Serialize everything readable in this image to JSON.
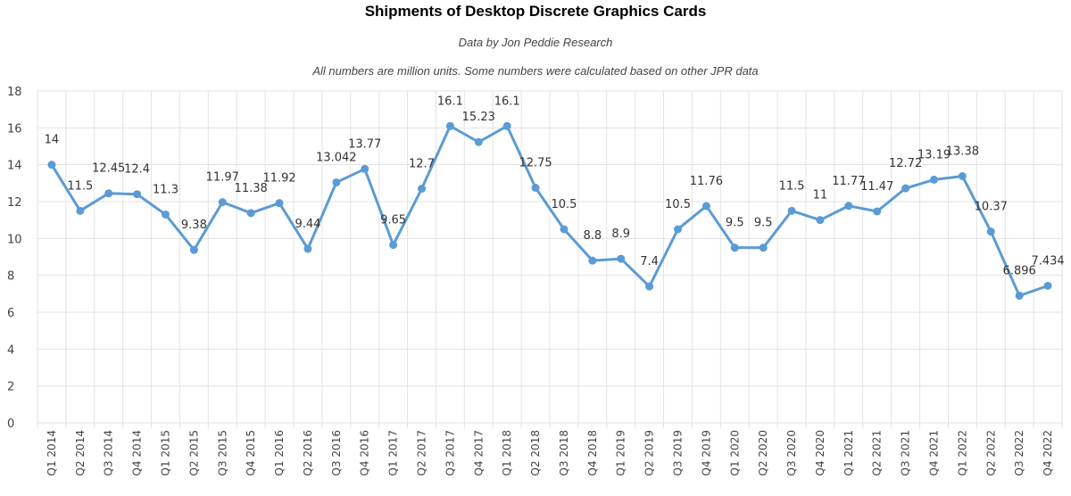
{
  "chart_data": {
    "type": "line",
    "title": "Shipments of Desktop Discrete Graphics Cards",
    "subtitle": "Data by Jon Peddie Research",
    "note": "All numbers are million units. Some numbers were calculated based on other JPR data",
    "xlabel": "",
    "ylabel": "",
    "ylim": [
      0,
      18
    ],
    "yticks": [
      0,
      2,
      4,
      6,
      8,
      10,
      12,
      14,
      16,
      18
    ],
    "grid": true,
    "color": "#5b9bd5",
    "categories": [
      "Q1 2014",
      "Q2 2014",
      "Q3 2014",
      "Q4 2014",
      "Q1 2015",
      "Q2 2015",
      "Q3 2015",
      "Q4 2015",
      "Q1 2016",
      "Q2 2016",
      "Q3 2016",
      "Q4 2016",
      "Q1 2017",
      "Q2 2017",
      "Q3 2017",
      "Q4 2017",
      "Q1 2018",
      "Q2 2018",
      "Q3 2018",
      "Q4 2018",
      "Q1 2019",
      "Q2 2019",
      "Q3 2019",
      "Q4 2019",
      "Q1 2020",
      "Q2 2020",
      "Q3 2020",
      "Q4 2020",
      "Q1 2021",
      "Q2 2021",
      "Q3 2021",
      "Q4 2021",
      "Q1 2022",
      "Q2 2022",
      "Q3 2022",
      "Q4 2022"
    ],
    "values": [
      14,
      11.5,
      12.45,
      12.4,
      11.3,
      9.38,
      11.97,
      11.38,
      11.92,
      9.44,
      13.042,
      13.77,
      9.65,
      12.7,
      16.1,
      15.23,
      16.1,
      12.75,
      10.5,
      8.8,
      8.9,
      7.4,
      10.5,
      11.76,
      9.5,
      9.5,
      11.5,
      11,
      11.77,
      11.47,
      12.72,
      13.19,
      13.38,
      10.37,
      6.896,
      7.434
    ]
  }
}
